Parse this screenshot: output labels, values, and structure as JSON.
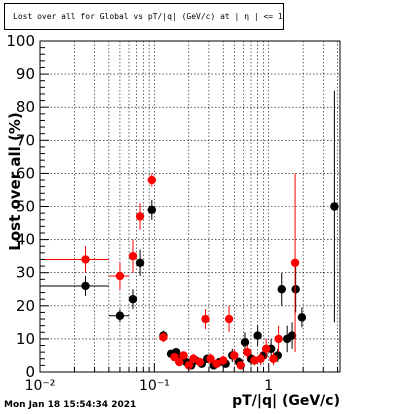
{
  "header": {
    "title": "Lost over all for Global vs pT/|q| (GeV/c) at | η | <= 1.0"
  },
  "footer": {
    "timestamp": "Mon Jan 18 15:54:34 2021"
  },
  "chart_data": {
    "type": "scatter",
    "title": "Lost over all for Global vs pT/|q| (GeV/c) at | η | <= 1.0",
    "xlabel": "pT/|q| (GeV/c)",
    "ylabel": "Lost over all (%)",
    "x_scale": "log",
    "xlim": [
      0.01,
      4.2
    ],
    "ylim": [
      0,
      100
    ],
    "grid": true,
    "x_tick_labels": [
      "10⁻²",
      "10⁻¹",
      "1"
    ],
    "y_tick_labels": [
      "0",
      "10",
      "20",
      "30",
      "40",
      "50",
      "60",
      "70",
      "80",
      "90",
      "100"
    ],
    "series": [
      {
        "color": "#000000",
        "points": [
          {
            "x": 0.025,
            "y": 26,
            "xerr": 0.015,
            "yerr": 3
          },
          {
            "x": 0.05,
            "y": 17,
            "xerr": 0.01,
            "yerr": 2
          },
          {
            "x": 0.065,
            "y": 22,
            "xerr": 0.005,
            "yerr": 3
          },
          {
            "x": 0.075,
            "y": 33,
            "xerr": 0.005,
            "yerr": 4
          },
          {
            "x": 0.095,
            "y": 49,
            "xerr": 0.008,
            "yerr": 3
          },
          {
            "x": 0.12,
            "y": 11,
            "xerr": 0.007,
            "yerr": 1.5
          },
          {
            "x": 0.14,
            "y": 5.5,
            "xerr": 0.007,
            "yerr": 1
          },
          {
            "x": 0.155,
            "y": 6,
            "xerr": 0.007,
            "yerr": 1
          },
          {
            "x": 0.17,
            "y": 4,
            "xerr": 0.007,
            "yerr": 1
          },
          {
            "x": 0.19,
            "y": 3,
            "xerr": 0.008,
            "yerr": 1
          },
          {
            "x": 0.21,
            "y": 2,
            "xerr": 0.008,
            "yerr": 1
          },
          {
            "x": 0.23,
            "y": 3.5,
            "xerr": 0.008,
            "yerr": 1
          },
          {
            "x": 0.26,
            "y": 2.5,
            "xerr": 0.01,
            "yerr": 1
          },
          {
            "x": 0.29,
            "y": 4,
            "xerr": 0.01,
            "yerr": 1
          },
          {
            "x": 0.33,
            "y": 2,
            "xerr": 0.01,
            "yerr": 1
          },
          {
            "x": 0.37,
            "y": 3,
            "xerr": 0.012,
            "yerr": 1
          },
          {
            "x": 0.42,
            "y": 2.5,
            "xerr": 0.012,
            "yerr": 1
          },
          {
            "x": 0.48,
            "y": 5,
            "xerr": 0.015,
            "yerr": 2
          },
          {
            "x": 0.55,
            "y": 3,
            "xerr": 0.015,
            "yerr": 1.5
          },
          {
            "x": 0.62,
            "y": 9,
            "xerr": 0.02,
            "yerr": 3
          },
          {
            "x": 0.7,
            "y": 4,
            "xerr": 0.02,
            "yerr": 2
          },
          {
            "x": 0.8,
            "y": 11,
            "xerr": 0.02,
            "yerr": 3
          },
          {
            "x": 0.9,
            "y": 5,
            "xerr": 0.02,
            "yerr": 2
          },
          {
            "x": 1.05,
            "y": 7,
            "xerr": 0.03,
            "yerr": 3
          },
          {
            "x": 1.2,
            "y": 5,
            "xerr": 0.03,
            "yerr": 2
          },
          {
            "x": 1.3,
            "y": 25,
            "xerr": 0.03,
            "yerr": 5
          },
          {
            "x": 1.45,
            "y": 10,
            "xerr": 0.04,
            "yerr": 4
          },
          {
            "x": 1.6,
            "y": 11,
            "xerr": 0.04,
            "yerr": 4
          },
          {
            "x": 1.72,
            "y": 25,
            "xerr": 0.04,
            "yerr": 7
          },
          {
            "x": 1.95,
            "y": 16.5,
            "xerr": 0.05,
            "yerr": 3
          },
          {
            "x": 3.75,
            "y": 50,
            "xerr": 0.15,
            "yerr": 35
          }
        ]
      },
      {
        "color": "#ff0000",
        "points": [
          {
            "x": 0.025,
            "y": 34,
            "xerr": 0.015,
            "yerr": 4
          },
          {
            "x": 0.05,
            "y": 29,
            "xerr": 0.01,
            "yerr": 4
          },
          {
            "x": 0.065,
            "y": 35,
            "xerr": 0.005,
            "yerr": 5
          },
          {
            "x": 0.075,
            "y": 47,
            "xerr": 0.005,
            "yerr": 4
          },
          {
            "x": 0.095,
            "y": 58,
            "xerr": 0.008,
            "yerr": 2
          },
          {
            "x": 0.12,
            "y": 10.5,
            "xerr": 0.007,
            "yerr": 1.5
          },
          {
            "x": 0.15,
            "y": 4.5,
            "xerr": 0.007,
            "yerr": 1
          },
          {
            "x": 0.165,
            "y": 3,
            "xerr": 0.007,
            "yerr": 1
          },
          {
            "x": 0.18,
            "y": 5,
            "xerr": 0.008,
            "yerr": 1
          },
          {
            "x": 0.2,
            "y": 2,
            "xerr": 0.008,
            "yerr": 1
          },
          {
            "x": 0.22,
            "y": 4,
            "xerr": 0.008,
            "yerr": 1.5
          },
          {
            "x": 0.25,
            "y": 3,
            "xerr": 0.01,
            "yerr": 1
          },
          {
            "x": 0.28,
            "y": 16,
            "xerr": 0.01,
            "yerr": 3
          },
          {
            "x": 0.31,
            "y": 4,
            "xerr": 0.01,
            "yerr": 1.5
          },
          {
            "x": 0.35,
            "y": 2.5,
            "xerr": 0.012,
            "yerr": 1
          },
          {
            "x": 0.4,
            "y": 3.5,
            "xerr": 0.012,
            "yerr": 1.5
          },
          {
            "x": 0.45,
            "y": 16,
            "xerr": 0.015,
            "yerr": 4
          },
          {
            "x": 0.5,
            "y": 5,
            "xerr": 0.015,
            "yerr": 2
          },
          {
            "x": 0.57,
            "y": 2,
            "xerr": 0.015,
            "yerr": 1
          },
          {
            "x": 0.65,
            "y": 6,
            "xerr": 0.02,
            "yerr": 2
          },
          {
            "x": 0.75,
            "y": 3.5,
            "xerr": 0.02,
            "yerr": 1.5
          },
          {
            "x": 0.85,
            "y": 4,
            "xerr": 0.02,
            "yerr": 2
          },
          {
            "x": 0.95,
            "y": 7,
            "xerr": 0.03,
            "yerr": 3
          },
          {
            "x": 1.1,
            "y": 4,
            "xerr": 0.03,
            "yerr": 2
          },
          {
            "x": 1.22,
            "y": 10,
            "xerr": 0.03,
            "yerr": 4
          },
          {
            "x": 1.7,
            "y": 33,
            "xerr": 0.05,
            "yerr": 27
          }
        ]
      }
    ]
  }
}
